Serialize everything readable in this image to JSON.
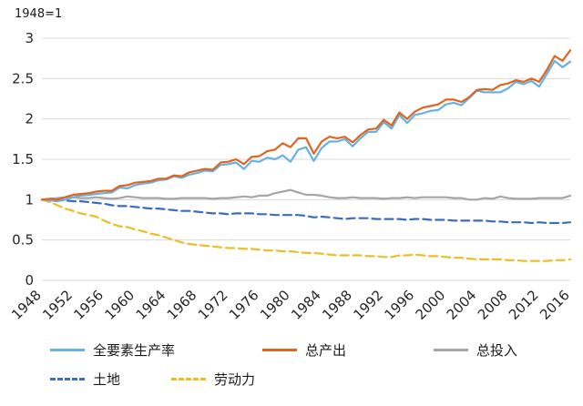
{
  "chart_data": {
    "type": "line",
    "annotation": "1948=1",
    "title": "",
    "xlabel": "",
    "ylabel": "",
    "ylim": [
      0,
      3
    ],
    "y_ticks": [
      0,
      0.5,
      1,
      1.5,
      2,
      2.5,
      3
    ],
    "x_tick_step": 4,
    "grid": "horizontal",
    "legend_position": "bottom",
    "x": [
      1948,
      1949,
      1950,
      1951,
      1952,
      1953,
      1954,
      1955,
      1956,
      1957,
      1958,
      1959,
      1960,
      1961,
      1962,
      1963,
      1964,
      1965,
      1966,
      1967,
      1968,
      1969,
      1970,
      1971,
      1972,
      1973,
      1974,
      1975,
      1976,
      1977,
      1978,
      1979,
      1980,
      1981,
      1982,
      1983,
      1984,
      1985,
      1986,
      1987,
      1988,
      1989,
      1990,
      1991,
      1992,
      1993,
      1994,
      1995,
      1996,
      1997,
      1998,
      1999,
      2000,
      2001,
      2002,
      2003,
      2004,
      2005,
      2006,
      2007,
      2008,
      2009,
      2010,
      2011,
      2012,
      2013,
      2014,
      2015,
      2016
    ],
    "series": [
      {
        "id": "tfp",
        "name": "全要素生产率",
        "color": "#63B3E4",
        "dash": "solid",
        "values": [
          1.0,
          0.99,
          0.98,
          1.0,
          1.03,
          1.05,
          1.06,
          1.07,
          1.08,
          1.09,
          1.15,
          1.14,
          1.18,
          1.2,
          1.21,
          1.24,
          1.25,
          1.29,
          1.27,
          1.31,
          1.33,
          1.36,
          1.35,
          1.43,
          1.44,
          1.46,
          1.38,
          1.48,
          1.47,
          1.52,
          1.5,
          1.55,
          1.47,
          1.62,
          1.65,
          1.48,
          1.64,
          1.72,
          1.72,
          1.75,
          1.66,
          1.76,
          1.84,
          1.84,
          1.96,
          1.88,
          2.05,
          1.95,
          2.05,
          2.07,
          2.1,
          2.11,
          2.18,
          2.2,
          2.17,
          2.26,
          2.35,
          2.33,
          2.33,
          2.33,
          2.38,
          2.46,
          2.43,
          2.47,
          2.4,
          2.56,
          2.72,
          2.64,
          2.71
        ]
      },
      {
        "id": "output",
        "name": "总产出",
        "color": "#E2641C",
        "dash": "solid",
        "values": [
          1.0,
          1.01,
          1.0,
          1.03,
          1.06,
          1.07,
          1.08,
          1.1,
          1.11,
          1.11,
          1.17,
          1.18,
          1.21,
          1.22,
          1.23,
          1.26,
          1.26,
          1.3,
          1.29,
          1.34,
          1.36,
          1.38,
          1.37,
          1.46,
          1.47,
          1.5,
          1.44,
          1.53,
          1.54,
          1.6,
          1.62,
          1.7,
          1.65,
          1.76,
          1.76,
          1.57,
          1.72,
          1.78,
          1.76,
          1.78,
          1.71,
          1.8,
          1.87,
          1.88,
          1.99,
          1.92,
          2.08,
          2.0,
          2.09,
          2.14,
          2.16,
          2.18,
          2.24,
          2.24,
          2.21,
          2.27,
          2.36,
          2.37,
          2.36,
          2.42,
          2.44,
          2.48,
          2.46,
          2.5,
          2.46,
          2.61,
          2.78,
          2.72,
          2.85
        ]
      },
      {
        "id": "input",
        "name": "总投入",
        "color": "#A6A6A6",
        "dash": "solid",
        "values": [
          1.0,
          1.01,
          1.02,
          1.03,
          1.03,
          1.02,
          1.02,
          1.03,
          1.02,
          1.01,
          1.02,
          1.04,
          1.03,
          1.02,
          1.02,
          1.02,
          1.01,
          1.01,
          1.02,
          1.02,
          1.02,
          1.02,
          1.01,
          1.02,
          1.02,
          1.03,
          1.04,
          1.03,
          1.05,
          1.05,
          1.08,
          1.1,
          1.12,
          1.09,
          1.06,
          1.06,
          1.05,
          1.03,
          1.02,
          1.02,
          1.03,
          1.02,
          1.02,
          1.02,
          1.01,
          1.02,
          1.02,
          1.03,
          1.02,
          1.03,
          1.03,
          1.03,
          1.03,
          1.02,
          1.02,
          1.0,
          1.0,
          1.02,
          1.01,
          1.04,
          1.02,
          1.01,
          1.01,
          1.01,
          1.02,
          1.02,
          1.02,
          1.02,
          1.05
        ]
      },
      {
        "id": "land",
        "name": "土地",
        "color": "#3A6BC5",
        "dash": "dashed",
        "values": [
          1.0,
          0.99,
          0.99,
          0.99,
          0.98,
          0.98,
          0.97,
          0.96,
          0.95,
          0.93,
          0.92,
          0.92,
          0.91,
          0.9,
          0.89,
          0.89,
          0.88,
          0.87,
          0.86,
          0.86,
          0.85,
          0.84,
          0.83,
          0.83,
          0.82,
          0.83,
          0.83,
          0.83,
          0.82,
          0.82,
          0.81,
          0.81,
          0.81,
          0.81,
          0.8,
          0.78,
          0.79,
          0.78,
          0.77,
          0.76,
          0.77,
          0.77,
          0.77,
          0.76,
          0.76,
          0.76,
          0.76,
          0.75,
          0.76,
          0.76,
          0.75,
          0.75,
          0.75,
          0.74,
          0.74,
          0.74,
          0.74,
          0.74,
          0.73,
          0.73,
          0.72,
          0.72,
          0.72,
          0.71,
          0.72,
          0.71,
          0.71,
          0.71,
          0.72
        ]
      },
      {
        "id": "labor",
        "name": "劳动力",
        "color": "#EDBE24",
        "dash": "dashed",
        "values": [
          1.0,
          0.97,
          0.93,
          0.89,
          0.86,
          0.83,
          0.81,
          0.79,
          0.74,
          0.7,
          0.67,
          0.66,
          0.63,
          0.61,
          0.58,
          0.56,
          0.53,
          0.5,
          0.47,
          0.45,
          0.44,
          0.43,
          0.42,
          0.41,
          0.4,
          0.4,
          0.39,
          0.39,
          0.38,
          0.37,
          0.37,
          0.36,
          0.36,
          0.35,
          0.34,
          0.34,
          0.33,
          0.32,
          0.31,
          0.31,
          0.31,
          0.31,
          0.3,
          0.3,
          0.29,
          0.29,
          0.31,
          0.31,
          0.32,
          0.31,
          0.3,
          0.3,
          0.29,
          0.28,
          0.28,
          0.27,
          0.26,
          0.26,
          0.26,
          0.26,
          0.25,
          0.25,
          0.24,
          0.24,
          0.24,
          0.24,
          0.25,
          0.25,
          0.26
        ]
      }
    ],
    "legend_rows": [
      [
        "tfp",
        "output",
        "input"
      ],
      [
        "land",
        "labor"
      ]
    ]
  }
}
